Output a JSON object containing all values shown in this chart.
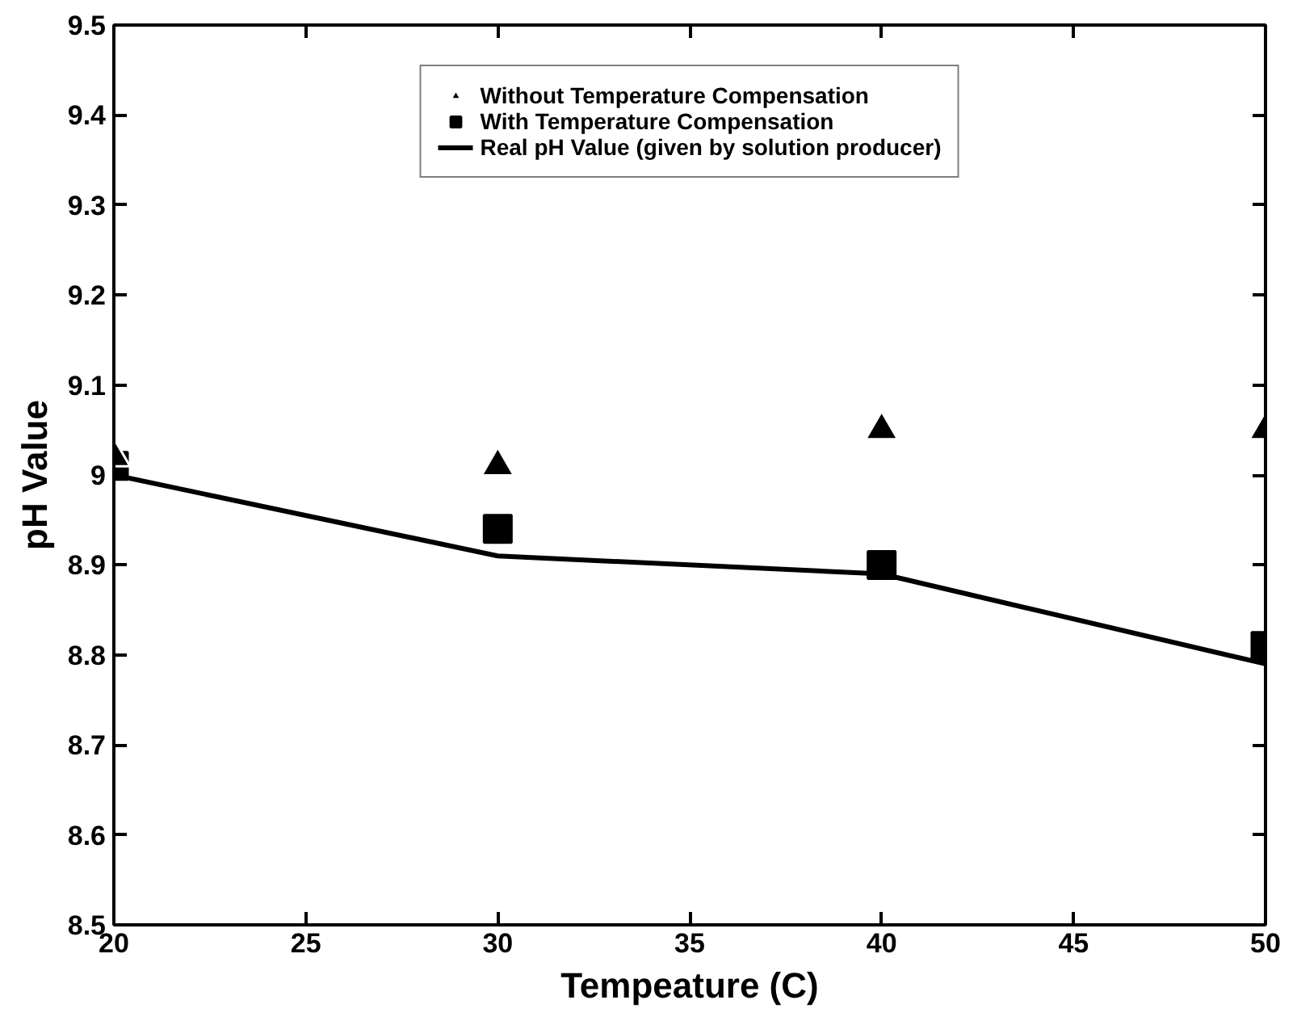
{
  "chart_data": {
    "type": "scatter",
    "xlabel": "Tempeature (C)",
    "ylabel": "pH Value",
    "x": [
      20,
      30,
      40,
      50
    ],
    "series": [
      {
        "name": "Without Temperature Compensation",
        "color": "#000000",
        "marker": "triangle",
        "values": [
          9.02,
          9.01,
          9.05,
          9.05
        ]
      },
      {
        "name": "With Temperature Compensation",
        "color": "#000000",
        "marker": "square",
        "values": [
          9.01,
          8.94,
          8.9,
          8.81
        ]
      },
      {
        "name": "Real pH Value (given by solution producer)",
        "color": "#000000",
        "type": "line",
        "marker": "none",
        "line_style": "solid",
        "values": [
          9.0,
          8.91,
          8.89,
          8.79
        ]
      }
    ],
    "xlim": [
      20,
      50
    ],
    "ylim": [
      8.5,
      9.5
    ],
    "xticks": [
      20,
      25,
      30,
      35,
      40,
      45,
      50
    ],
    "yticks": [
      8.5,
      8.6,
      8.7,
      8.8,
      8.9,
      {
        "value": 9,
        "label": "9"
      },
      9.1,
      9.2,
      9.3,
      9.4,
      9.5
    ],
    "grid": false,
    "legend": "top"
  }
}
